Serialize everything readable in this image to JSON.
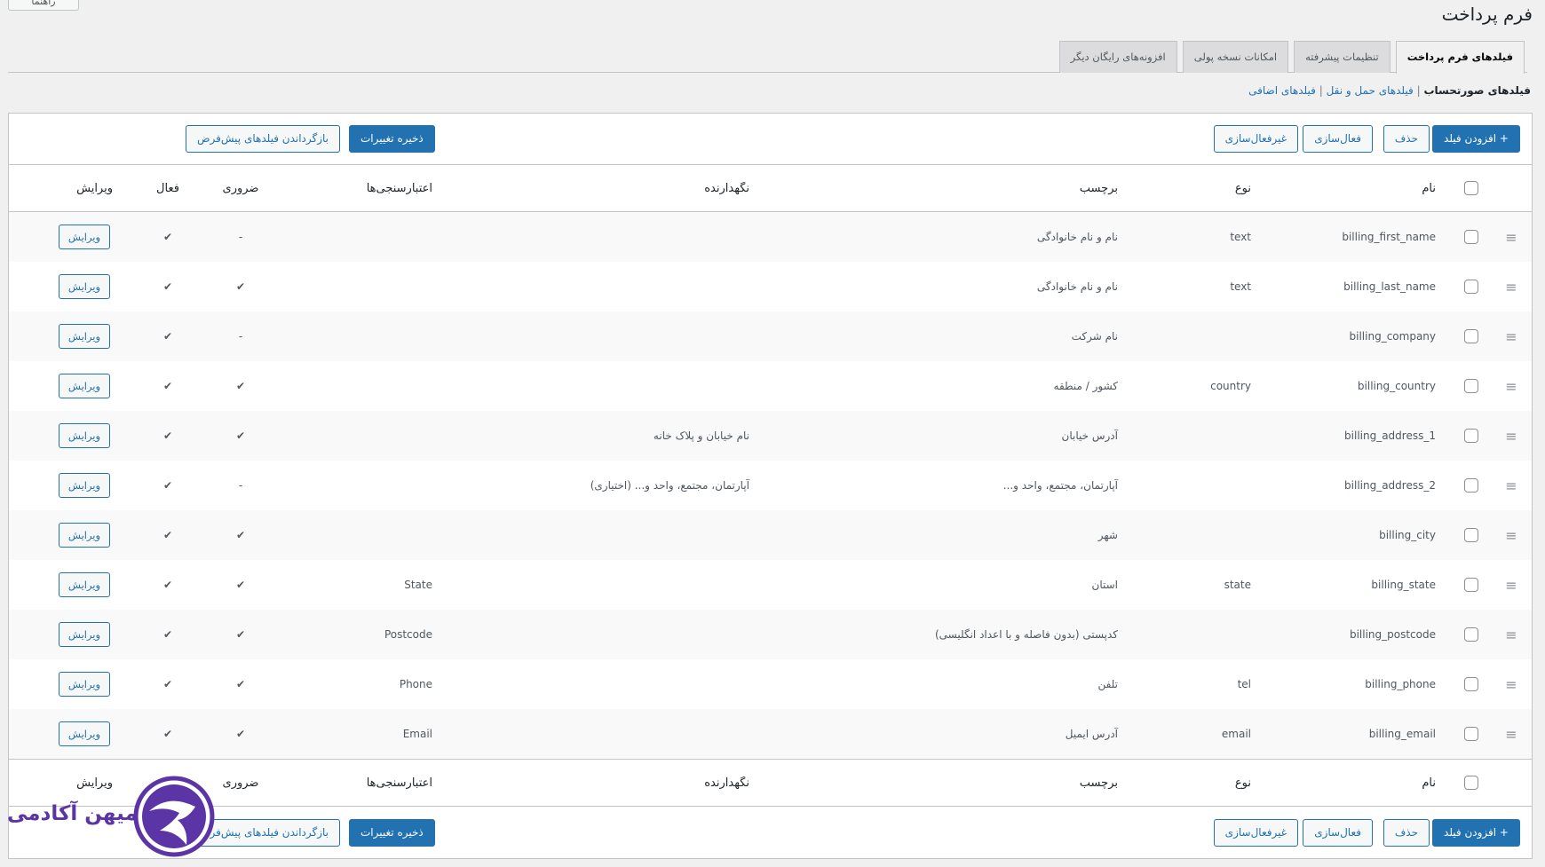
{
  "top_button": "راهنما",
  "page_title": "فرم پرداخت",
  "tabs": [
    {
      "label": "فیلدهای فرم پرداخت",
      "active": true
    },
    {
      "label": "تنظیمات پیشرفته"
    },
    {
      "label": "امکانات نسخه پولی"
    },
    {
      "label": "افزونه‌های رایگان دیگر"
    }
  ],
  "subnav": {
    "current": "فیلدهای صورتحساب",
    "links": [
      "فیلدهای حمل و نقل",
      "فیلدهای اضافی"
    ],
    "sep": "|"
  },
  "toolbar": {
    "add": "+ افزودن فیلد",
    "delete": "حذف",
    "enable": "فعال‌سازی",
    "disable": "غیرفعال‌سازی",
    "save": "ذخیره تغییرات",
    "reset": "بازگرداندن فیلدهای پیش‌فرض"
  },
  "columns": {
    "name": "نام",
    "type": "نوع",
    "label": "برچسب",
    "placeholder": "نگهدارنده",
    "validation": "اعتبارسنجی‌ها",
    "required": "ضروری",
    "active": "فعال",
    "edit": "ویرایش"
  },
  "edit_label": "ویرایش",
  "rows": [
    {
      "name": "billing_first_name",
      "type": "text",
      "label": "نام و نام خانوادگی",
      "placeholder": "",
      "validation": "",
      "required": "-",
      "active": "✔"
    },
    {
      "name": "billing_last_name",
      "type": "text",
      "label": "نام و نام خانوادگی",
      "placeholder": "",
      "validation": "",
      "required": "✔",
      "active": "✔"
    },
    {
      "name": "billing_company",
      "type": "",
      "label": "نام شرکت",
      "placeholder": "",
      "validation": "",
      "required": "-",
      "active": "✔"
    },
    {
      "name": "billing_country",
      "type": "country",
      "label": "کشور / منطقه",
      "placeholder": "",
      "validation": "",
      "required": "✔",
      "active": "✔"
    },
    {
      "name": "billing_address_1",
      "type": "",
      "label": "آدرس خیابان",
      "placeholder": "نام خیابان و پلاک خانه",
      "validation": "",
      "required": "✔",
      "active": "✔"
    },
    {
      "name": "billing_address_2",
      "type": "",
      "label": "آپارتمان، مجتمع، واحد و...",
      "placeholder": "آپارتمان، مجتمع، واحد و... (اختیاری)",
      "validation": "",
      "required": "-",
      "active": "✔"
    },
    {
      "name": "billing_city",
      "type": "",
      "label": "شهر",
      "placeholder": "",
      "validation": "",
      "required": "✔",
      "active": "✔"
    },
    {
      "name": "billing_state",
      "type": "state",
      "label": "استان",
      "placeholder": "",
      "validation": "State",
      "required": "✔",
      "active": "✔"
    },
    {
      "name": "billing_postcode",
      "type": "",
      "label": "کدپستی (بدون فاصله و با اعداد انگلیسی)",
      "placeholder": "",
      "validation": "Postcode",
      "required": "✔",
      "active": "✔"
    },
    {
      "name": "billing_phone",
      "type": "tel",
      "label": "تلفن",
      "placeholder": "",
      "validation": "Phone",
      "required": "✔",
      "active": "✔"
    },
    {
      "name": "billing_email",
      "type": "email",
      "label": "آدرس ایمیل",
      "placeholder": "",
      "validation": "Email",
      "required": "✔",
      "active": "✔"
    }
  ],
  "watermark": "میهن آکادمی",
  "colors": {
    "primary": "#2271b1",
    "watermark": "#5b34a6"
  }
}
